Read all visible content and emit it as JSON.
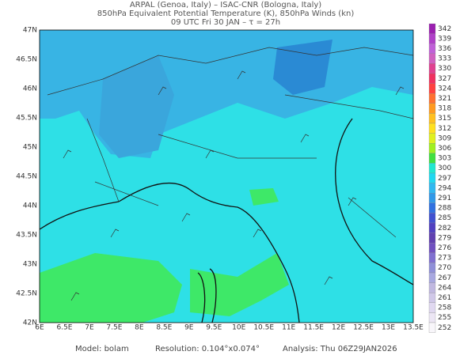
{
  "header": {
    "lines": [
      "ARPAL (Genoa, Italy)  –  ISAC-CNR (Bologna, Italy)",
      "850hPa Equivalent Potential Temperature (K), 850hPa Winds (kn)",
      "09 UTC Fri 30 JAN  –  τ = 27h"
    ]
  },
  "map": {
    "lon_ticks": [
      "6E",
      "6.5E",
      "7E",
      "7.5E",
      "8E",
      "8.5E",
      "9E",
      "9.5E",
      "10E",
      "10.5E",
      "11E",
      "11.5E",
      "12E",
      "12.5E",
      "13E",
      "13.5E"
    ],
    "lat_ticks": [
      "47N",
      "46.5N",
      "46N",
      "45.5N",
      "45N",
      "44.5N",
      "44N",
      "43.5N",
      "43N",
      "42.5N",
      "42N"
    ]
  },
  "colorbar": {
    "levels": [
      342,
      339,
      336,
      333,
      330,
      327,
      324,
      321,
      318,
      315,
      312,
      309,
      306,
      303,
      300,
      297,
      294,
      291,
      288,
      285,
      282,
      279,
      276,
      273,
      270,
      267,
      264,
      261,
      258,
      255,
      252
    ],
    "colors": [
      "#9b1fb0",
      "#b040c8",
      "#c060d8",
      "#d060c0",
      "#e04090",
      "#f03060",
      "#ff4040",
      "#ff7030",
      "#ff9a20",
      "#ffc020",
      "#ffe020",
      "#e0f020",
      "#a0f020",
      "#40e040",
      "#20e8d0",
      "#20d8f0",
      "#30b8f0",
      "#3098e8",
      "#3070e0",
      "#4050d0",
      "#5040c0",
      "#6040b0",
      "#7050c0",
      "#8070d0",
      "#9090d8",
      "#a8a8e0",
      "#c0b8e0",
      "#d0c8e8",
      "#e0d8f0",
      "#ece6f4",
      "#f8f6fa"
    ]
  },
  "footer": {
    "model": "Model: bolam",
    "resolution": "Resolution: 0.104°x0.074°",
    "analysis": "Analysis: Thu 06Z29JAN2026"
  }
}
